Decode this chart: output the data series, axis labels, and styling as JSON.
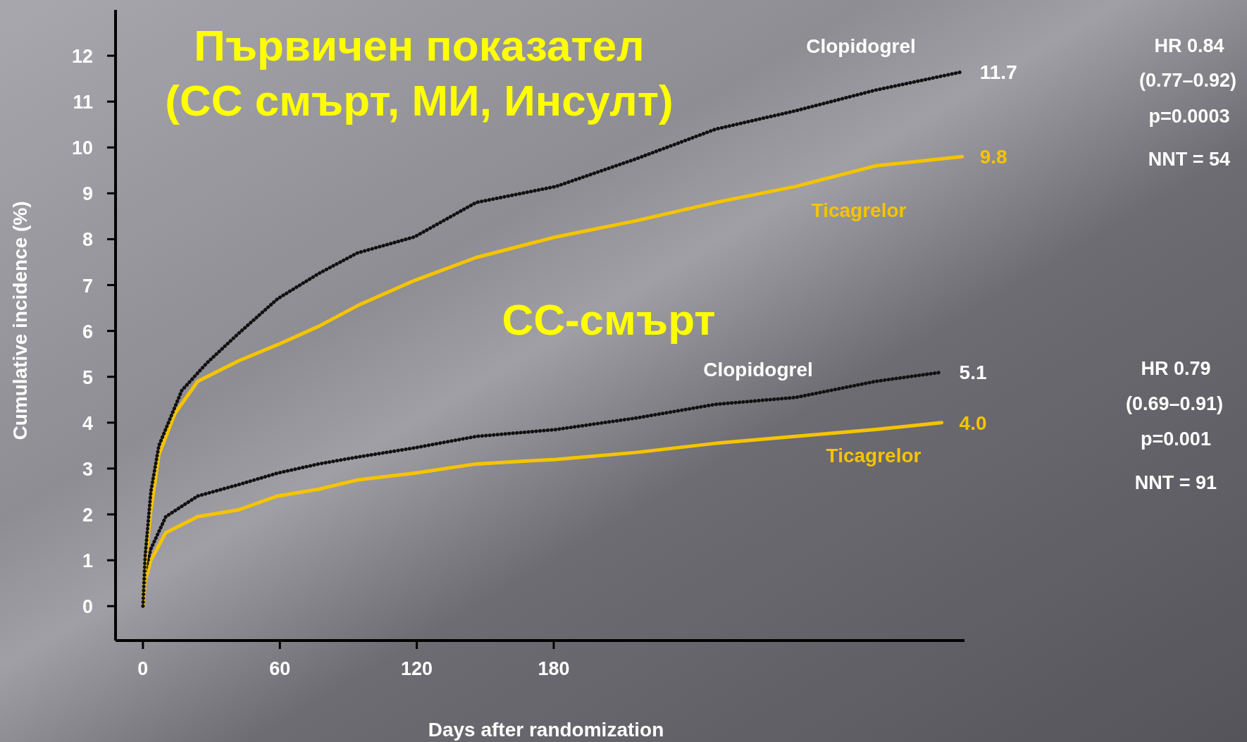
{
  "chart_data": {
    "type": "line",
    "title": "Първичен показател\n(СС смърт, МИ, Инсулт)",
    "xlabel": "Days after randomization",
    "ylabel": "Cumulative incidence (%)",
    "xlim": [
      -12,
      360
    ],
    "ylim": [
      -0.75,
      13
    ],
    "xticks": [
      0,
      60,
      120,
      180
    ],
    "yticks": [
      0,
      1,
      2,
      3,
      4,
      5,
      6,
      7,
      8,
      9,
      10,
      11,
      12
    ],
    "annotations": [
      "СС-смърт",
      "HR 0.84",
      "(0.77–0.92)",
      "p=0.0003",
      "NNT = 54",
      "HR 0.79",
      "(0.69–0.91)",
      "p=0.001",
      "NNT = 91"
    ],
    "series": [
      {
        "name": "Clopidogrel",
        "color": "#111111",
        "line_style": "dotted",
        "x": [
          0,
          1,
          3.5,
          7,
          17,
          28,
          42,
          59,
          77,
          94,
          119,
          146,
          181,
          216,
          251,
          286,
          321,
          359
        ],
        "values": [
          0,
          1.1,
          2.5,
          3.5,
          4.7,
          5.3,
          5.95,
          6.7,
          7.25,
          7.7,
          8.05,
          8.8,
          9.15,
          9.75,
          10.4,
          10.8,
          11.25,
          11.65
        ],
        "value_labels": [
          null,
          null,
          null,
          null,
          null,
          null,
          null,
          null,
          null,
          null,
          null,
          null,
          null,
          null,
          null,
          null,
          null,
          "11.7"
        ]
      },
      {
        "name": "Ticagrelor",
        "color": "#f5c400",
        "line_style": "solid",
        "x": [
          0,
          1,
          3.5,
          7,
          14,
          24,
          42,
          59,
          77,
          94,
          119,
          146,
          181,
          216,
          251,
          286,
          321,
          359
        ],
        "values": [
          0,
          0.9,
          2.1,
          3.3,
          4.2,
          4.9,
          5.35,
          5.7,
          6.1,
          6.55,
          7.1,
          7.6,
          8.05,
          8.4,
          8.8,
          9.15,
          9.6,
          9.8
        ],
        "value_labels": [
          null,
          null,
          null,
          null,
          null,
          null,
          null,
          null,
          null,
          null,
          null,
          null,
          null,
          null,
          null,
          null,
          null,
          "9.8"
        ]
      },
      {
        "name": "Clopidogrel",
        "color": "#111111",
        "line_style": "dotted",
        "x": [
          0,
          1,
          3.5,
          10,
          24,
          42,
          59,
          77,
          94,
          119,
          146,
          181,
          216,
          251,
          286,
          321,
          350
        ],
        "values": [
          0,
          0.75,
          1.25,
          1.95,
          2.4,
          2.65,
          2.9,
          3.1,
          3.25,
          3.45,
          3.7,
          3.85,
          4.1,
          4.4,
          4.55,
          4.9,
          5.1
        ],
        "value_labels": [
          null,
          null,
          null,
          null,
          null,
          null,
          null,
          null,
          null,
          null,
          null,
          null,
          null,
          null,
          null,
          null,
          "5.1"
        ]
      },
      {
        "name": "Ticagrelor",
        "color": "#f5c400",
        "line_style": "solid",
        "x": [
          0,
          1,
          3.5,
          10,
          24,
          42,
          59,
          77,
          94,
          119,
          146,
          181,
          216,
          251,
          286,
          321,
          350
        ],
        "values": [
          0,
          0.55,
          1.0,
          1.6,
          1.95,
          2.1,
          2.4,
          2.55,
          2.75,
          2.9,
          3.1,
          3.2,
          3.35,
          3.55,
          3.7,
          3.85,
          4.0
        ],
        "value_labels": [
          null,
          null,
          null,
          null,
          null,
          null,
          null,
          null,
          null,
          null,
          null,
          null,
          null,
          null,
          null,
          null,
          "4.0"
        ]
      }
    ]
  }
}
